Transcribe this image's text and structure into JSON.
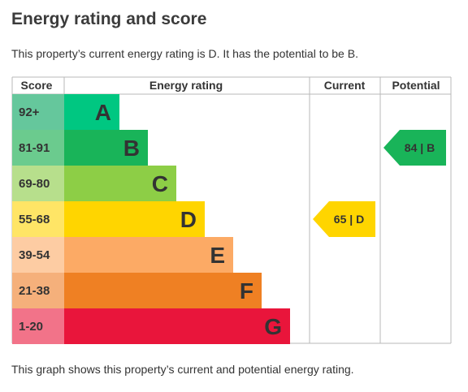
{
  "page": {
    "title": "Energy rating and score",
    "intro": "This property’s current energy rating is D. It has the potential to be B.",
    "footer": "This graph shows this property’s current and potential energy rating."
  },
  "table": {
    "headers": {
      "score": "Score",
      "rating": "Energy rating",
      "current": "Current",
      "potential": "Potential"
    },
    "bands": [
      {
        "letter": "A",
        "score": "92+",
        "bar_color": "#00c781",
        "score_color": "#65c79c"
      },
      {
        "letter": "B",
        "score": "81-91",
        "bar_color": "#19b459",
        "score_color": "#6bcb8e"
      },
      {
        "letter": "C",
        "score": "69-80",
        "bar_color": "#8dce46",
        "score_color": "#b7df8c"
      },
      {
        "letter": "D",
        "score": "55-68",
        "bar_color": "#ffd500",
        "score_color": "#ffe566"
      },
      {
        "letter": "E",
        "score": "39-54",
        "bar_color": "#fcaa65",
        "score_color": "#fdcca3"
      },
      {
        "letter": "F",
        "score": "21-38",
        "bar_color": "#ef8023",
        "score_color": "#f5b07b"
      },
      {
        "letter": "G",
        "score": "1-20",
        "bar_color": "#e9153b",
        "score_color": "#f27389"
      }
    ],
    "current": {
      "label": "65 | D",
      "band": "D",
      "score": 65,
      "color": "#ffd500",
      "text_color": "#333333"
    },
    "potential": {
      "label": "84 | B",
      "band": "B",
      "score": 84,
      "color": "#19b459",
      "text_color": "#333333"
    }
  }
}
